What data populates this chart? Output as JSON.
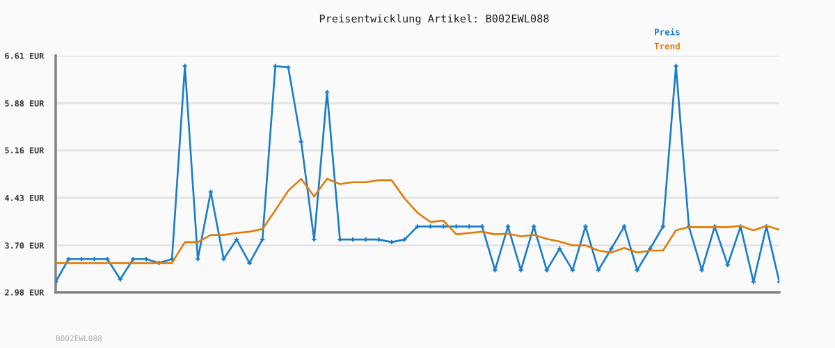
{
  "chart_data": {
    "type": "line",
    "title": "Preisentwicklung Artikel: B002EWL088",
    "categories": [
      null,
      null,
      null,
      null,
      null,
      null,
      null,
      null,
      null,
      null,
      null,
      null,
      null,
      null,
      null,
      null,
      null,
      null,
      null,
      null,
      null,
      null,
      null,
      null,
      null,
      null,
      null,
      null,
      null,
      null,
      null,
      null,
      null,
      null,
      null,
      null,
      null,
      null,
      null,
      null,
      null,
      null,
      null,
      null,
      null,
      null,
      null,
      null,
      null,
      null,
      null,
      null,
      null,
      null,
      null,
      null,
      null
    ],
    "series": [
      {
        "name": "Preis",
        "color": "#1a7dc8",
        "marker": "cross",
        "values": [
          3.14,
          3.49,
          3.49,
          3.49,
          3.49,
          3.18,
          3.49,
          3.49,
          3.43,
          3.49,
          6.45,
          3.49,
          4.52,
          3.49,
          3.79,
          3.43,
          3.79,
          6.45,
          6.43,
          5.29,
          3.79,
          6.05,
          3.79,
          3.79,
          3.79,
          3.79,
          3.75,
          3.79,
          3.99,
          3.99,
          3.99,
          3.99,
          3.99,
          3.99,
          3.32,
          3.99,
          3.32,
          3.99,
          3.32,
          3.65,
          3.32,
          3.99,
          3.32,
          3.65,
          3.99,
          3.32,
          3.65,
          3.99,
          6.45,
          3.99,
          3.32,
          3.99,
          3.4,
          3.99,
          3.14,
          3.99,
          3.14
        ]
      },
      {
        "name": "Trend",
        "color": "#e07c0c",
        "marker": "none",
        "values": [
          3.43,
          3.43,
          3.43,
          3.43,
          3.43,
          3.43,
          3.43,
          3.43,
          3.43,
          3.43,
          3.75,
          3.75,
          3.86,
          3.86,
          3.89,
          3.91,
          3.95,
          4.24,
          4.54,
          4.72,
          4.45,
          4.72,
          4.64,
          4.67,
          4.67,
          4.7,
          4.7,
          4.42,
          4.2,
          4.06,
          4.08,
          3.87,
          3.89,
          3.91,
          3.87,
          3.88,
          3.84,
          3.86,
          3.8,
          3.76,
          3.7,
          3.7,
          3.62,
          3.59,
          3.66,
          3.59,
          3.62,
          3.62,
          3.93,
          3.98,
          3.98,
          3.98,
          3.98,
          4.0,
          3.93,
          4.0,
          3.94
        ]
      }
    ],
    "ylim": [
      2.98,
      6.61
    ],
    "yticks": [
      {
        "value": 2.98,
        "label": "2.98 EUR"
      },
      {
        "value": 3.7,
        "label": "3.70 EUR"
      },
      {
        "value": 4.43,
        "label": "4.43 EUR"
      },
      {
        "value": 5.16,
        "label": "5.16 EUR"
      },
      {
        "value": 5.88,
        "label": "5.88 EUR"
      },
      {
        "value": 6.61,
        "label": "6.61 EUR"
      }
    ],
    "grid": "y",
    "legend": "top right",
    "line_style": "solid",
    "tick_labels": "y",
    "annotations": [
      "B002EWL088"
    ]
  }
}
